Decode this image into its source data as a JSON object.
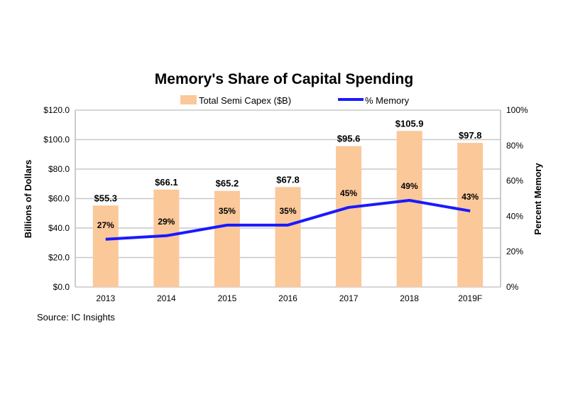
{
  "chart_data": {
    "type": "bar",
    "title": "Memory's Share of Capital Spending",
    "categories": [
      "2013",
      "2014",
      "2015",
      "2016",
      "2017",
      "2018",
      "2019F"
    ],
    "series": [
      {
        "name": "Total Semi Capex ($B)",
        "type": "bar",
        "axis": "left",
        "color": "#fbc89a",
        "values": [
          55.3,
          66.1,
          65.2,
          67.8,
          95.6,
          105.9,
          97.8
        ],
        "labels": [
          "$55.3",
          "$66.1",
          "$65.2",
          "$67.8",
          "$95.6",
          "$105.9",
          "$97.8"
        ]
      },
      {
        "name": "% Memory",
        "type": "line",
        "axis": "right",
        "color": "#1a1aff",
        "values": [
          27,
          29,
          35,
          35,
          45,
          49,
          43
        ],
        "labels": [
          "27%",
          "29%",
          "35%",
          "35%",
          "45%",
          "49%",
          "43%"
        ]
      }
    ],
    "ylabel": "Billions of Dollars",
    "y2label": "Percent Memory",
    "ylim": [
      0,
      120
    ],
    "y2lim": [
      0,
      100
    ],
    "yticks": [
      "$0.0",
      "$20.0",
      "$40.0",
      "$60.0",
      "$80.0",
      "$100.0",
      "$120.0"
    ],
    "y2ticks": [
      "0%",
      "20%",
      "40%",
      "60%",
      "80%",
      "100%"
    ],
    "grid": true,
    "legend": "top-center",
    "source": "Source:  IC Insights"
  }
}
